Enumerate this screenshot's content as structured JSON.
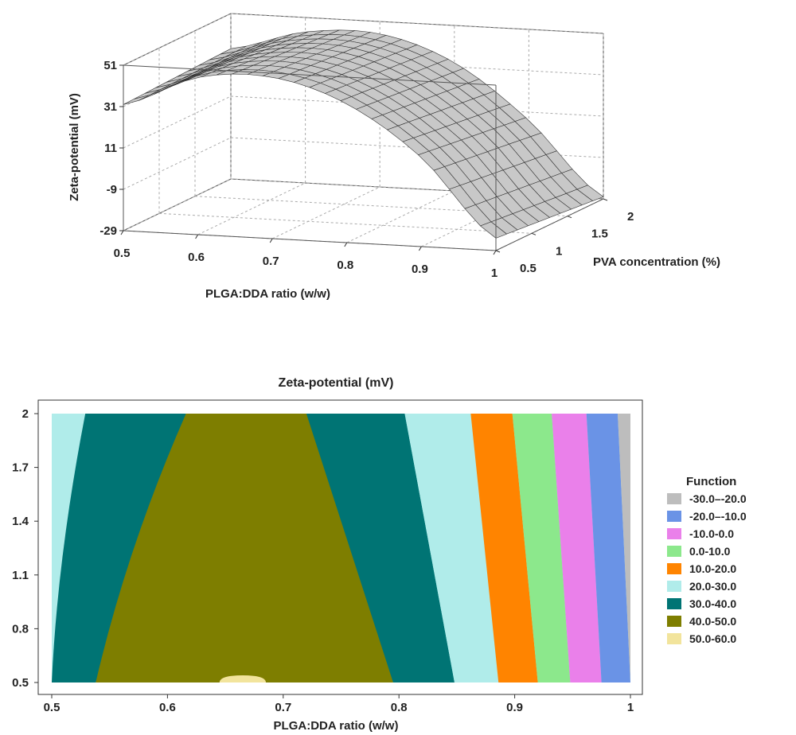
{
  "chart_data": [
    {
      "type": "surface",
      "title": "",
      "xlabel": "PLGA:DDA ratio (w/w)",
      "ylabel": "PVA concentration (%)",
      "zlabel": "Zeta-potential (mV)",
      "x_ticks": [
        "0.5",
        "0.6",
        "0.7",
        "0.8",
        "0.9",
        "1"
      ],
      "y_ticks": [
        "0.5",
        "1",
        "1.5",
        "2"
      ],
      "z_ticks": [
        "-29",
        "-9",
        "11",
        "31",
        "51"
      ],
      "xlim": [
        0.5,
        1.0
      ],
      "ylim": [
        0.5,
        2.0
      ],
      "zlim": [
        -29,
        51
      ],
      "surface_color": "#c8c8c8",
      "mesh_color": "#333333",
      "surface_at_pva_0_5": {
        "x": [
          0.5,
          0.6,
          0.7,
          0.8,
          0.9,
          1.0
        ],
        "z": [
          32,
          47,
          49,
          38,
          14,
          -23
        ]
      },
      "surface_at_pva_2_0": {
        "x": [
          0.5,
          0.6,
          0.7,
          0.8,
          0.9,
          1.0
        ],
        "z": [
          34,
          44,
          45,
          33,
          7,
          -28
        ]
      }
    },
    {
      "type": "contour",
      "title": "Zeta-potential (mV)",
      "xlabel": "PLGA:DDA ratio (w/w)",
      "ylabel": "",
      "x_ticks": [
        "0.5",
        "0.6",
        "0.7",
        "0.8",
        "0.9",
        "1"
      ],
      "y_ticks": [
        "0.5",
        "0.8",
        "1.1",
        "1.4",
        "1.7",
        "2"
      ],
      "xlim": [
        0.5,
        1.0
      ],
      "ylim": [
        0.5,
        2.0
      ],
      "legend_title": "Function",
      "legend_position": "right",
      "levels": [
        {
          "label": "-30.0–-20.0",
          "color": "#bdbdbd"
        },
        {
          "label": "-20.0–-10.0",
          "color": "#6a93e6"
        },
        {
          "label": "-10.0-0.0",
          "color": "#ea80ea"
        },
        {
          "label": "0.0-10.0",
          "color": "#8ce88c"
        },
        {
          "label": "10.0-20.0",
          "color": "#ff8400"
        },
        {
          "label": "20.0-30.0",
          "color": "#b0ecea"
        },
        {
          "label": "30.0-40.0",
          "color": "#007474"
        },
        {
          "label": "40.0-50.0",
          "color": "#7e7e00"
        },
        {
          "label": "50.0-60.0",
          "color": "#f2e49c"
        }
      ],
      "boundaries": [
        {
          "level": "20-30 | 30-40",
          "x_at_y0_5": 0.5,
          "x_at_y2_0": 0.529
        },
        {
          "level": "30-40 | 40-50 (left)",
          "x_at_y0_5": 0.538,
          "x_at_y2_0": 0.616
        },
        {
          "level": "40-50 | 30-40 (right)",
          "x_at_y0_5": 0.795,
          "x_at_y2_0": 0.72
        },
        {
          "level": "30-40 | 20-30",
          "x_at_y0_5": 0.848,
          "x_at_y2_0": 0.805
        },
        {
          "level": "20-30 | 10-20",
          "x_at_y0_5": 0.886,
          "x_at_y2_0": 0.862
        },
        {
          "level": "10-20 | 0-10",
          "x_at_y0_5": 0.92,
          "x_at_y2_0": 0.898
        },
        {
          "level": "0-10 | -10-0",
          "x_at_y0_5": 0.948,
          "x_at_y2_0": 0.932
        },
        {
          "level": "-10-0 | -20--10",
          "x_at_y0_5": 0.975,
          "x_at_y2_0": 0.962
        },
        {
          "level": "-20--10 | -30--20",
          "x_at_y0_5": 1.0,
          "x_at_y2_0": 0.989
        }
      ],
      "peak_region": {
        "level": "50.0-60.0",
        "x_center": 0.665,
        "y_min": 0.5,
        "x_half_width": 0.02,
        "y_height": 0.04
      }
    }
  ]
}
